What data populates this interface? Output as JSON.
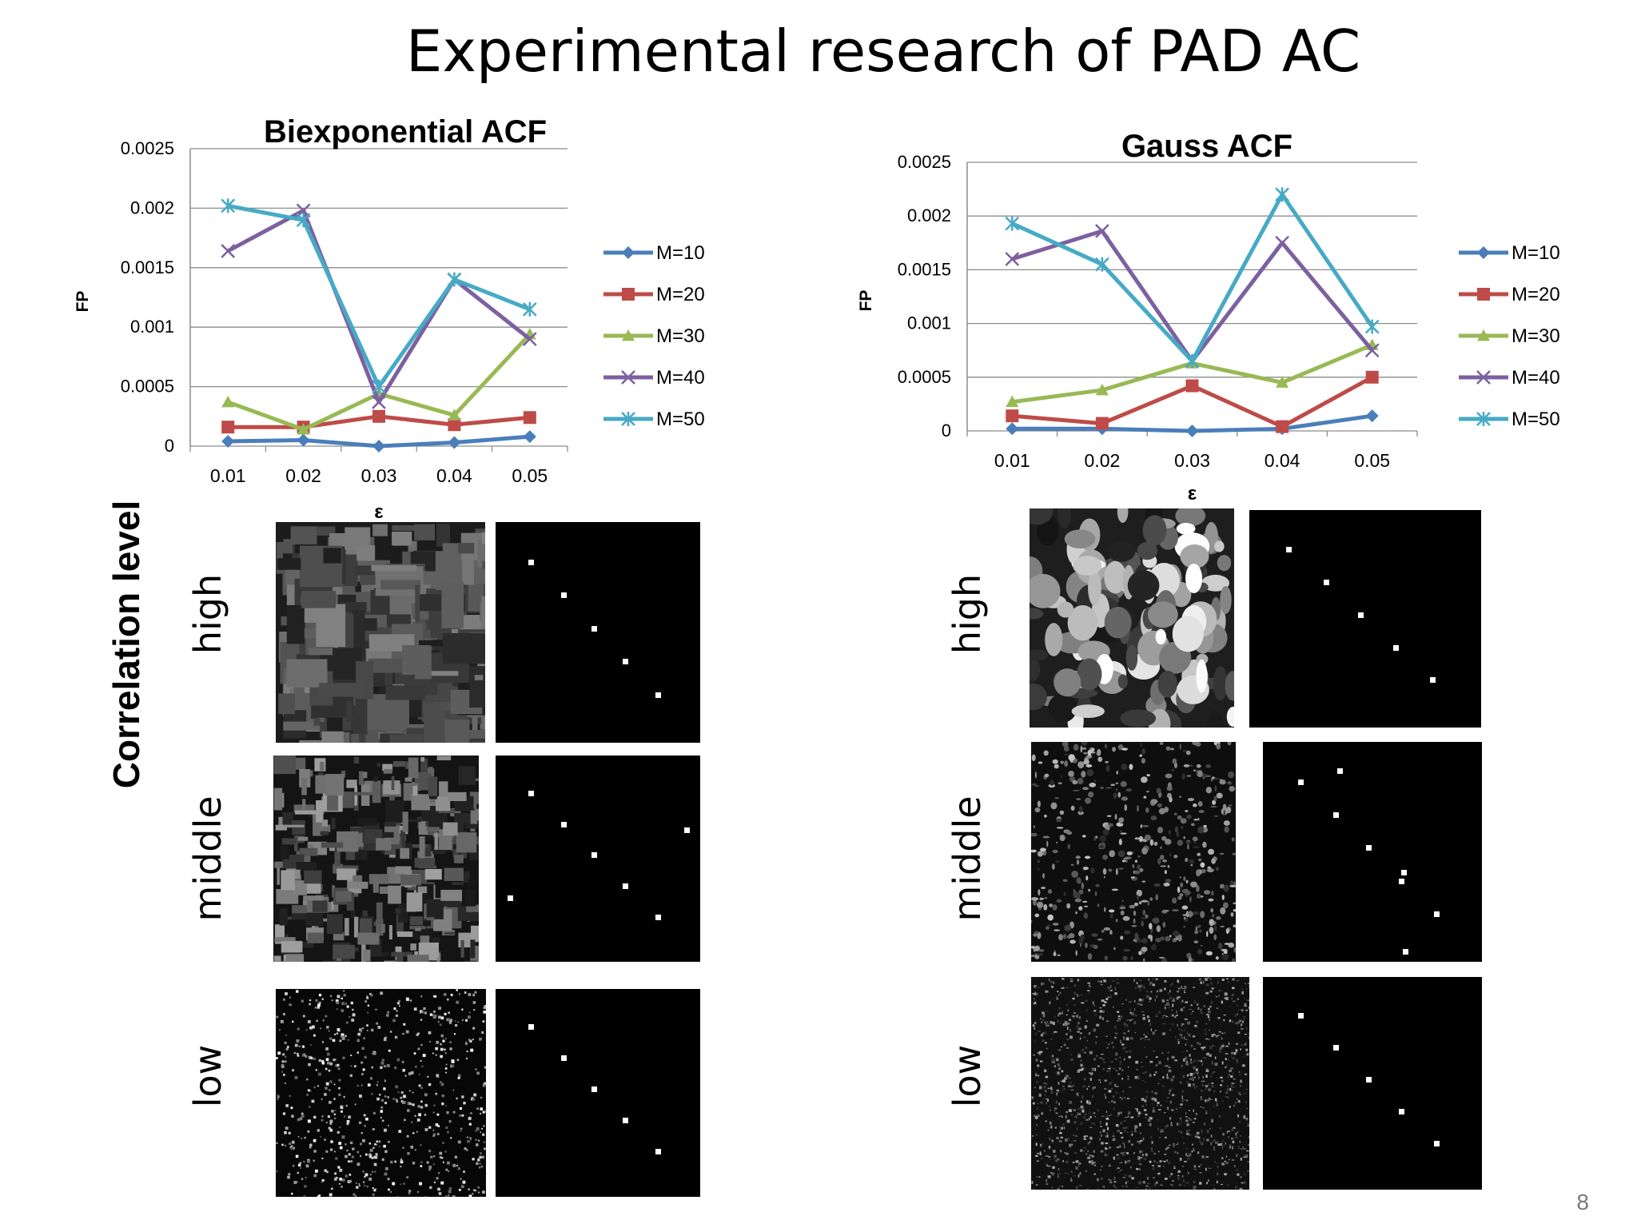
{
  "slide": {
    "title": "Experimental research of PAD AC",
    "page_number": "8",
    "side_label": "Correlation level",
    "row_labels": [
      "high",
      "middle",
      "low"
    ]
  },
  "chart_data": [
    {
      "type": "line",
      "title": "Biexponential ACF",
      "xlabel": "ε",
      "ylabel": "FP",
      "categories": [
        "0.01",
        "0.02",
        "0.03",
        "0.04",
        "0.05"
      ],
      "ylim": [
        0,
        0.0025
      ],
      "yticks": [
        "0",
        "0.0005",
        "0.001",
        "0.0015",
        "0.002",
        "0.0025"
      ],
      "legend_position": "right",
      "grid": true,
      "series": [
        {
          "name": "M=10",
          "values": [
            4e-05,
            5e-05,
            0.0,
            3e-05,
            8e-05
          ],
          "color": "#4A7EBB",
          "marker": "diamond"
        },
        {
          "name": "M=20",
          "values": [
            0.00016,
            0.00016,
            0.00025,
            0.00018,
            0.00024
          ],
          "color": "#BE4B48",
          "marker": "square"
        },
        {
          "name": "M=30",
          "values": [
            0.00037,
            0.00014,
            0.00044,
            0.00026,
            0.00094
          ],
          "color": "#98B954",
          "marker": "triangle"
        },
        {
          "name": "M=40",
          "values": [
            0.00164,
            0.00198,
            0.00037,
            0.0014,
            0.0009
          ],
          "color": "#7D60A0",
          "marker": "x"
        },
        {
          "name": "M=50",
          "values": [
            0.00202,
            0.0019,
            0.0005,
            0.0014,
            0.00115
          ],
          "color": "#46AAC5",
          "marker": "star"
        }
      ]
    },
    {
      "type": "line",
      "title": "Gauss ACF",
      "xlabel": "ε",
      "ylabel": "FP",
      "categories": [
        "0.01",
        "0.02",
        "0.03",
        "0.04",
        "0.05"
      ],
      "ylim": [
        0,
        0.0025
      ],
      "yticks": [
        "0",
        "0.0005",
        "0.001",
        "0.0015",
        "0.002",
        "0.0025"
      ],
      "legend_position": "right",
      "grid": true,
      "series": [
        {
          "name": "M=10",
          "values": [
            2e-05,
            2e-05,
            0.0,
            2e-05,
            0.00014
          ],
          "color": "#4A7EBB",
          "marker": "diamond"
        },
        {
          "name": "M=20",
          "values": [
            0.00014,
            7e-05,
            0.00042,
            4e-05,
            0.0005
          ],
          "color": "#BE4B48",
          "marker": "square"
        },
        {
          "name": "M=30",
          "values": [
            0.00027,
            0.00038,
            0.00063,
            0.00045,
            0.0008
          ],
          "color": "#98B954",
          "marker": "triangle"
        },
        {
          "name": "M=40",
          "values": [
            0.0016,
            0.00186,
            0.00065,
            0.00175,
            0.00075
          ],
          "color": "#7D60A0",
          "marker": "x"
        },
        {
          "name": "M=50",
          "values": [
            0.00193,
            0.00155,
            0.00065,
            0.0022,
            0.00097
          ],
          "color": "#46AAC5",
          "marker": "star"
        }
      ]
    }
  ]
}
